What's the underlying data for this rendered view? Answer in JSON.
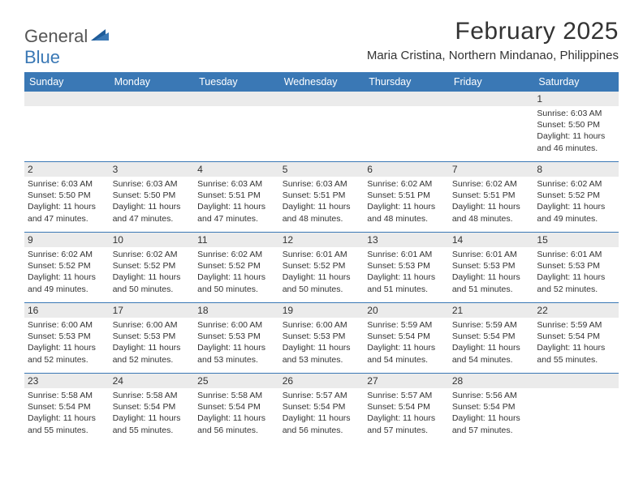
{
  "logo": {
    "text1": "General",
    "text2": "Blue"
  },
  "title": "February 2025",
  "location": "Maria Cristina, Northern Mindanao, Philippines",
  "header_bg": "#3a78b5",
  "divider_color": "#3a78b5",
  "band_bg": "#ebebeb",
  "text_color": "#333333",
  "weekdays": [
    "Sunday",
    "Monday",
    "Tuesday",
    "Wednesday",
    "Thursday",
    "Friday",
    "Saturday"
  ],
  "weeks": [
    [
      {
        "n": "",
        "sr": "",
        "ss": "",
        "d1": "",
        "d2": ""
      },
      {
        "n": "",
        "sr": "",
        "ss": "",
        "d1": "",
        "d2": ""
      },
      {
        "n": "",
        "sr": "",
        "ss": "",
        "d1": "",
        "d2": ""
      },
      {
        "n": "",
        "sr": "",
        "ss": "",
        "d1": "",
        "d2": ""
      },
      {
        "n": "",
        "sr": "",
        "ss": "",
        "d1": "",
        "d2": ""
      },
      {
        "n": "",
        "sr": "",
        "ss": "",
        "d1": "",
        "d2": ""
      },
      {
        "n": "1",
        "sr": "Sunrise: 6:03 AM",
        "ss": "Sunset: 5:50 PM",
        "d1": "Daylight: 11 hours",
        "d2": "and 46 minutes."
      }
    ],
    [
      {
        "n": "2",
        "sr": "Sunrise: 6:03 AM",
        "ss": "Sunset: 5:50 PM",
        "d1": "Daylight: 11 hours",
        "d2": "and 47 minutes."
      },
      {
        "n": "3",
        "sr": "Sunrise: 6:03 AM",
        "ss": "Sunset: 5:50 PM",
        "d1": "Daylight: 11 hours",
        "d2": "and 47 minutes."
      },
      {
        "n": "4",
        "sr": "Sunrise: 6:03 AM",
        "ss": "Sunset: 5:51 PM",
        "d1": "Daylight: 11 hours",
        "d2": "and 47 minutes."
      },
      {
        "n": "5",
        "sr": "Sunrise: 6:03 AM",
        "ss": "Sunset: 5:51 PM",
        "d1": "Daylight: 11 hours",
        "d2": "and 48 minutes."
      },
      {
        "n": "6",
        "sr": "Sunrise: 6:02 AM",
        "ss": "Sunset: 5:51 PM",
        "d1": "Daylight: 11 hours",
        "d2": "and 48 minutes."
      },
      {
        "n": "7",
        "sr": "Sunrise: 6:02 AM",
        "ss": "Sunset: 5:51 PM",
        "d1": "Daylight: 11 hours",
        "d2": "and 48 minutes."
      },
      {
        "n": "8",
        "sr": "Sunrise: 6:02 AM",
        "ss": "Sunset: 5:52 PM",
        "d1": "Daylight: 11 hours",
        "d2": "and 49 minutes."
      }
    ],
    [
      {
        "n": "9",
        "sr": "Sunrise: 6:02 AM",
        "ss": "Sunset: 5:52 PM",
        "d1": "Daylight: 11 hours",
        "d2": "and 49 minutes."
      },
      {
        "n": "10",
        "sr": "Sunrise: 6:02 AM",
        "ss": "Sunset: 5:52 PM",
        "d1": "Daylight: 11 hours",
        "d2": "and 50 minutes."
      },
      {
        "n": "11",
        "sr": "Sunrise: 6:02 AM",
        "ss": "Sunset: 5:52 PM",
        "d1": "Daylight: 11 hours",
        "d2": "and 50 minutes."
      },
      {
        "n": "12",
        "sr": "Sunrise: 6:01 AM",
        "ss": "Sunset: 5:52 PM",
        "d1": "Daylight: 11 hours",
        "d2": "and 50 minutes."
      },
      {
        "n": "13",
        "sr": "Sunrise: 6:01 AM",
        "ss": "Sunset: 5:53 PM",
        "d1": "Daylight: 11 hours",
        "d2": "and 51 minutes."
      },
      {
        "n": "14",
        "sr": "Sunrise: 6:01 AM",
        "ss": "Sunset: 5:53 PM",
        "d1": "Daylight: 11 hours",
        "d2": "and 51 minutes."
      },
      {
        "n": "15",
        "sr": "Sunrise: 6:01 AM",
        "ss": "Sunset: 5:53 PM",
        "d1": "Daylight: 11 hours",
        "d2": "and 52 minutes."
      }
    ],
    [
      {
        "n": "16",
        "sr": "Sunrise: 6:00 AM",
        "ss": "Sunset: 5:53 PM",
        "d1": "Daylight: 11 hours",
        "d2": "and 52 minutes."
      },
      {
        "n": "17",
        "sr": "Sunrise: 6:00 AM",
        "ss": "Sunset: 5:53 PM",
        "d1": "Daylight: 11 hours",
        "d2": "and 52 minutes."
      },
      {
        "n": "18",
        "sr": "Sunrise: 6:00 AM",
        "ss": "Sunset: 5:53 PM",
        "d1": "Daylight: 11 hours",
        "d2": "and 53 minutes."
      },
      {
        "n": "19",
        "sr": "Sunrise: 6:00 AM",
        "ss": "Sunset: 5:53 PM",
        "d1": "Daylight: 11 hours",
        "d2": "and 53 minutes."
      },
      {
        "n": "20",
        "sr": "Sunrise: 5:59 AM",
        "ss": "Sunset: 5:54 PM",
        "d1": "Daylight: 11 hours",
        "d2": "and 54 minutes."
      },
      {
        "n": "21",
        "sr": "Sunrise: 5:59 AM",
        "ss": "Sunset: 5:54 PM",
        "d1": "Daylight: 11 hours",
        "d2": "and 54 minutes."
      },
      {
        "n": "22",
        "sr": "Sunrise: 5:59 AM",
        "ss": "Sunset: 5:54 PM",
        "d1": "Daylight: 11 hours",
        "d2": "and 55 minutes."
      }
    ],
    [
      {
        "n": "23",
        "sr": "Sunrise: 5:58 AM",
        "ss": "Sunset: 5:54 PM",
        "d1": "Daylight: 11 hours",
        "d2": "and 55 minutes."
      },
      {
        "n": "24",
        "sr": "Sunrise: 5:58 AM",
        "ss": "Sunset: 5:54 PM",
        "d1": "Daylight: 11 hours",
        "d2": "and 55 minutes."
      },
      {
        "n": "25",
        "sr": "Sunrise: 5:58 AM",
        "ss": "Sunset: 5:54 PM",
        "d1": "Daylight: 11 hours",
        "d2": "and 56 minutes."
      },
      {
        "n": "26",
        "sr": "Sunrise: 5:57 AM",
        "ss": "Sunset: 5:54 PM",
        "d1": "Daylight: 11 hours",
        "d2": "and 56 minutes."
      },
      {
        "n": "27",
        "sr": "Sunrise: 5:57 AM",
        "ss": "Sunset: 5:54 PM",
        "d1": "Daylight: 11 hours",
        "d2": "and 57 minutes."
      },
      {
        "n": "28",
        "sr": "Sunrise: 5:56 AM",
        "ss": "Sunset: 5:54 PM",
        "d1": "Daylight: 11 hours",
        "d2": "and 57 minutes."
      },
      {
        "n": "",
        "sr": "",
        "ss": "",
        "d1": "",
        "d2": ""
      }
    ]
  ]
}
